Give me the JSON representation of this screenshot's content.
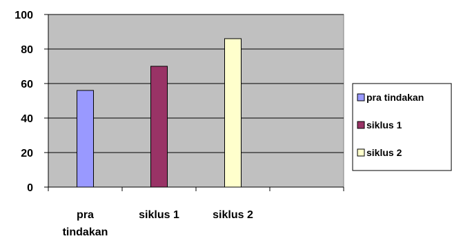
{
  "chart_data": {
    "type": "bar",
    "categories": [
      "pra tindakan",
      "siklus 1",
      "siklus 2"
    ],
    "series": [
      {
        "name": "pra tindakan",
        "values": [
          56,
          null,
          null
        ],
        "color": "#9999ff"
      },
      {
        "name": "siklus 1",
        "values": [
          null,
          70,
          null
        ],
        "color": "#993366"
      },
      {
        "name": "siklus 2",
        "values": [
          null,
          null,
          86
        ],
        "color": "#ffffcc"
      }
    ],
    "y_ticks": [
      "0",
      "20",
      "40",
      "60",
      "80",
      "100"
    ],
    "ylim": [
      0,
      100
    ],
    "x_tick_labels": [
      [
        "pra",
        "tindakan"
      ],
      [
        "siklus 1"
      ],
      [
        "siklus 2"
      ],
      []
    ],
    "grid": true,
    "legend_position": "right",
    "plot_background": "#c0c0c0"
  }
}
